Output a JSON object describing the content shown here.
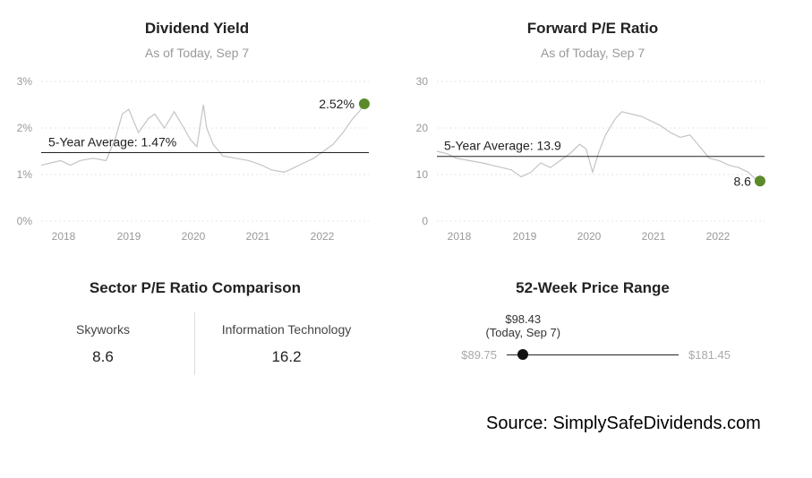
{
  "chart_data": [
    {
      "type": "line",
      "title": "Dividend Yield",
      "subtitle": "As of Today, Sep 7",
      "x_tick_labels": [
        "2018",
        "2019",
        "2020",
        "2021",
        "2022"
      ],
      "y_tick_labels": [
        "3%",
        "2%",
        "1%",
        "0%"
      ],
      "ylim": [
        0,
        3
      ],
      "xlim": [
        2017.7,
        2022.75
      ],
      "average_label": "5-Year Average: 1.47%",
      "average": 1.47,
      "current_label": "2.52%",
      "current": 2.52,
      "series": [
        {
          "x": [
            2017.7,
            2017.85,
            2018.0,
            2018.15,
            2018.3,
            2018.5,
            2018.7,
            2018.85,
            2018.95,
            2019.05,
            2019.2,
            2019.35,
            2019.45,
            2019.6,
            2019.75,
            2019.9,
            2020.0,
            2020.1,
            2020.2,
            2020.25,
            2020.35,
            2020.5,
            2020.7,
            2020.9,
            2021.1,
            2021.25,
            2021.45,
            2021.6,
            2021.75,
            2021.9,
            2022.05,
            2022.2,
            2022.35,
            2022.5,
            2022.6,
            2022.68
          ],
          "values": [
            1.2,
            1.25,
            1.3,
            1.2,
            1.3,
            1.35,
            1.3,
            1.8,
            2.3,
            2.4,
            1.9,
            2.2,
            2.3,
            2.0,
            2.35,
            2.0,
            1.75,
            1.6,
            2.5,
            2.0,
            1.65,
            1.4,
            1.35,
            1.3,
            1.2,
            1.1,
            1.05,
            1.15,
            1.25,
            1.35,
            1.5,
            1.65,
            1.9,
            2.2,
            2.35,
            2.52
          ]
        }
      ],
      "line_color": "#c4c4c4",
      "marker_color": "#5b8a2a"
    },
    {
      "type": "line",
      "title": "Forward P/E Ratio",
      "subtitle": "As of Today, Sep 7",
      "x_tick_labels": [
        "2018",
        "2019",
        "2020",
        "2021",
        "2022"
      ],
      "y_tick_labels": [
        "30",
        "20",
        "10",
        "0"
      ],
      "ylim": [
        0,
        30
      ],
      "xlim": [
        2017.7,
        2022.75
      ],
      "average_label": "5-Year Average: 13.9",
      "average": 13.9,
      "current_label": "8.6",
      "current": 8.6,
      "series": [
        {
          "x": [
            2017.7,
            2017.85,
            2018.0,
            2018.2,
            2018.4,
            2018.55,
            2018.7,
            2018.85,
            2019.0,
            2019.15,
            2019.3,
            2019.45,
            2019.6,
            2019.75,
            2019.9,
            2020.0,
            2020.1,
            2020.2,
            2020.3,
            2020.45,
            2020.55,
            2020.7,
            2020.85,
            2021.0,
            2021.15,
            2021.3,
            2021.45,
            2021.6,
            2021.75,
            2021.9,
            2022.05,
            2022.2,
            2022.35,
            2022.5,
            2022.6,
            2022.68
          ],
          "values": [
            15.0,
            14.5,
            13.5,
            13.0,
            12.5,
            12.0,
            11.5,
            11.0,
            9.5,
            10.5,
            12.5,
            11.5,
            13.0,
            14.5,
            16.5,
            15.5,
            10.5,
            15.0,
            18.5,
            22.0,
            23.5,
            23.0,
            22.5,
            21.5,
            20.5,
            19.0,
            18.0,
            18.5,
            16.0,
            13.5,
            13.0,
            12.0,
            11.5,
            10.5,
            9.2,
            8.6
          ]
        }
      ],
      "line_color": "#c4c4c4",
      "marker_color": "#5b8a2a"
    }
  ],
  "comparison": {
    "title": "Sector P/E Ratio Comparison",
    "left_name": "Skyworks",
    "left_value": "8.6",
    "right_name": "Information Technology",
    "right_value": "16.2"
  },
  "price_range": {
    "title": "52-Week Price Range",
    "current_value": "$98.43",
    "current_caption": "(Today, Sep 7)",
    "low": "$89.75",
    "high": "$181.45",
    "position_fraction": 0.095
  },
  "source": "Source: SimplySafeDividends.com"
}
